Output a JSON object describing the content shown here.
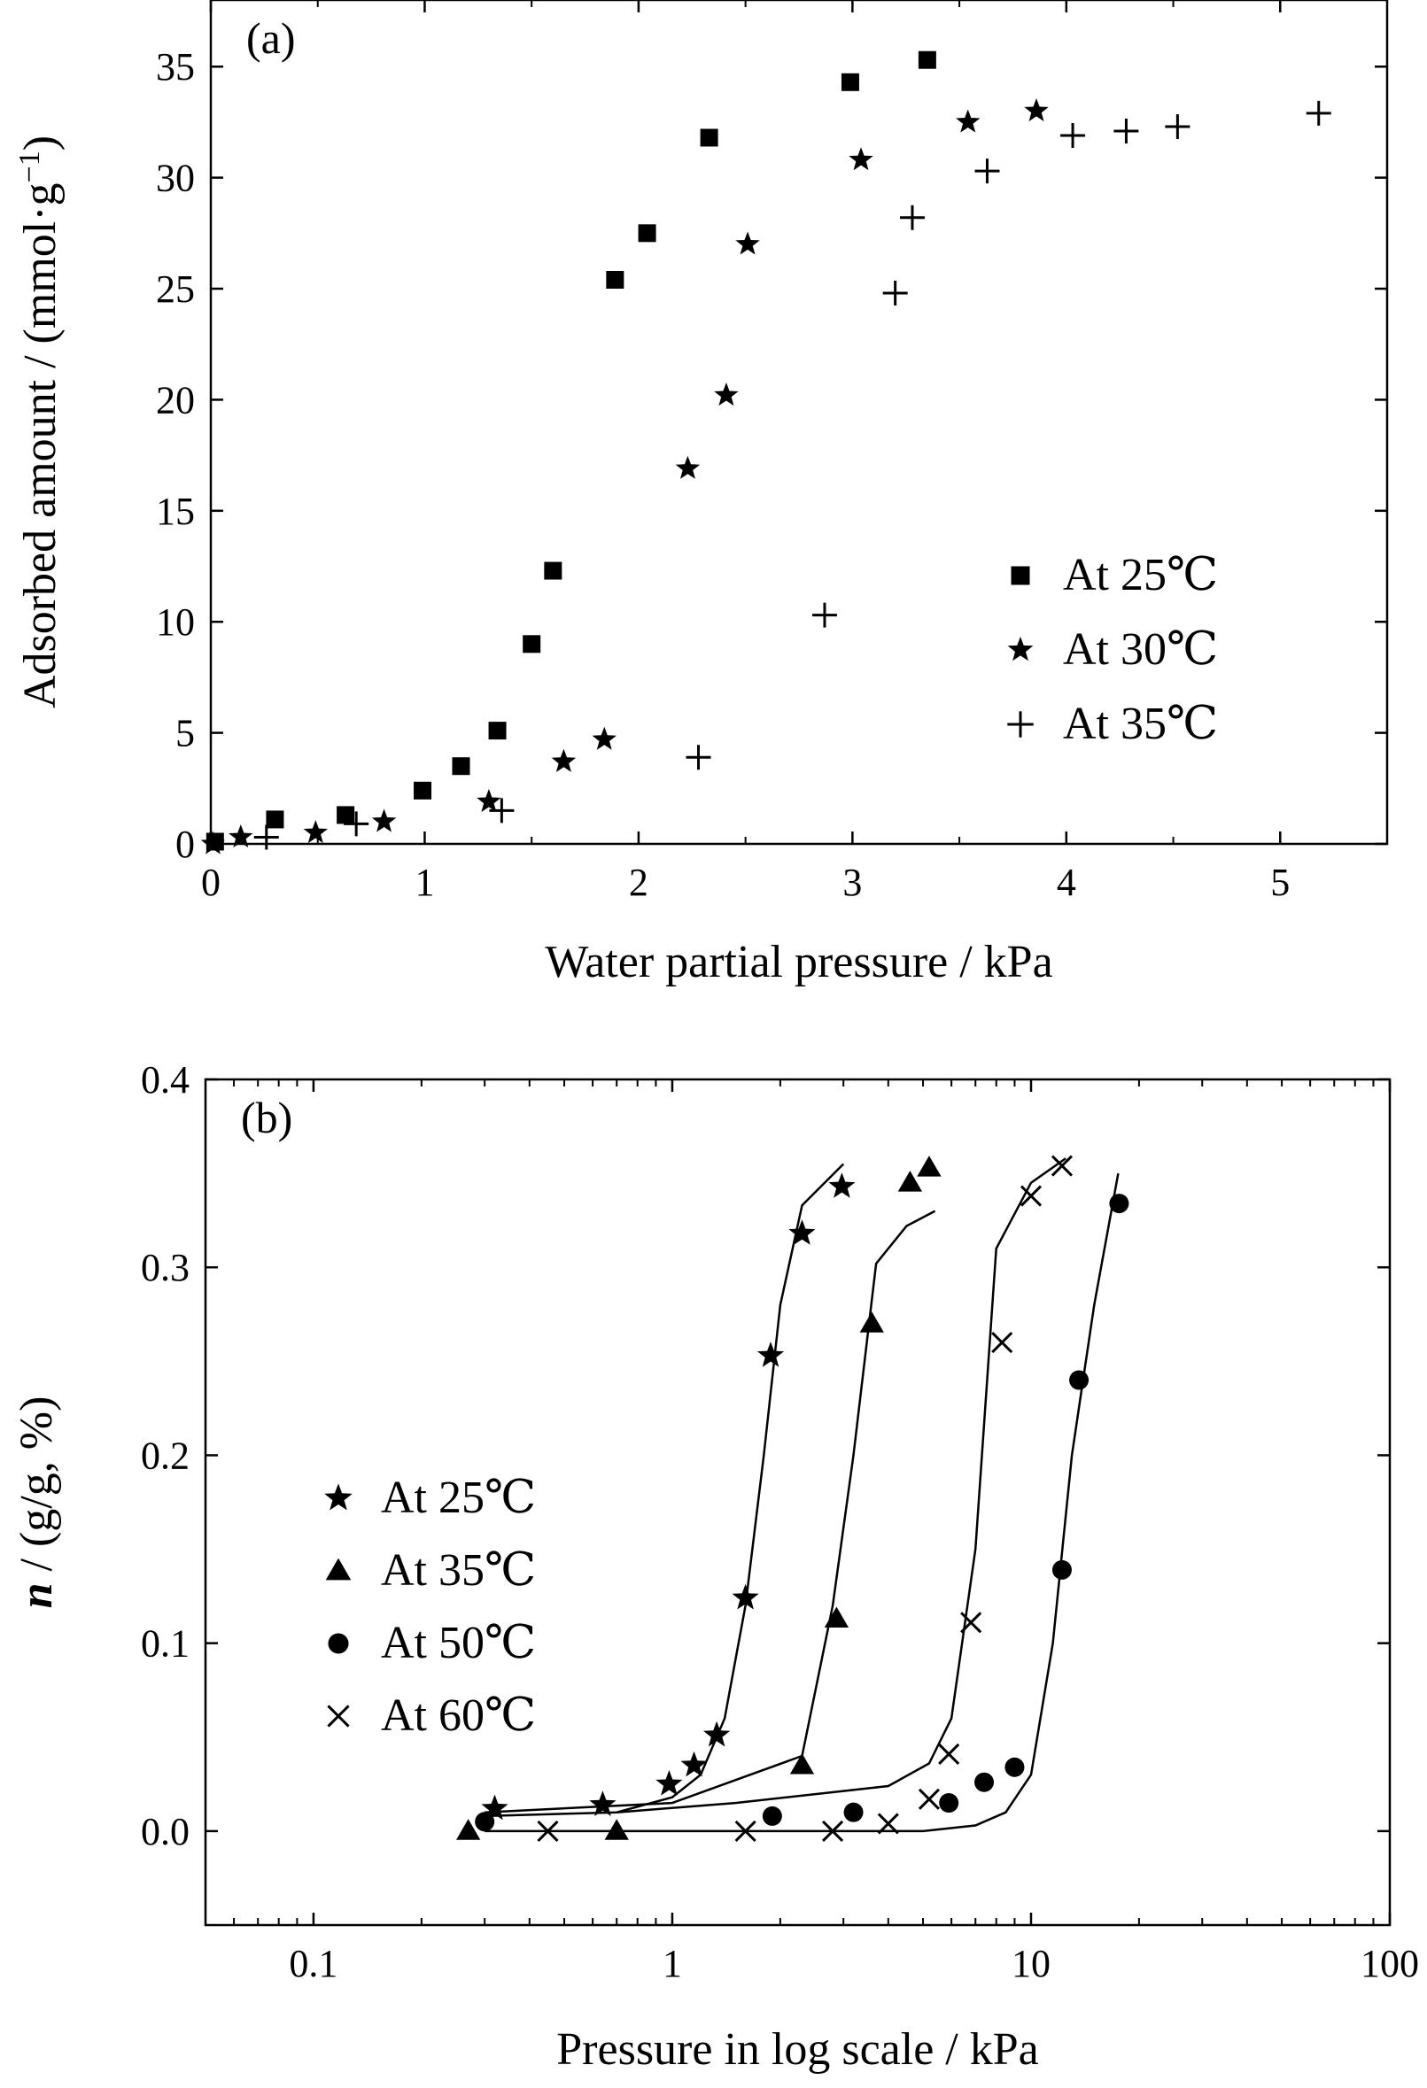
{
  "chart_data": [
    {
      "panel_label": "(a)",
      "type": "scatter",
      "xlabel": "Water partial pressure / kPa",
      "ylabel": "Adsorbed amount / (mmol·g⁻¹)",
      "ylabel_main": "Adsorbed amount / (mmol·g",
      "ylabel_sup": "−1",
      "ylabel_end": ")",
      "xlim": [
        0,
        5.5
      ],
      "ylim": [
        0,
        38
      ],
      "xticks": [
        0,
        1,
        2,
        3,
        4,
        5
      ],
      "yticks": [
        0,
        5,
        10,
        15,
        20,
        25,
        30,
        35
      ],
      "legend_position": "right",
      "series": [
        {
          "name": "At 25℃",
          "marker": "square",
          "points": [
            [
              0.02,
              0.1
            ],
            [
              0.3,
              1.1
            ],
            [
              0.63,
              1.3
            ],
            [
              0.99,
              2.4
            ],
            [
              1.17,
              3.5
            ],
            [
              1.34,
              5.1
            ],
            [
              1.5,
              9.0
            ],
            [
              1.6,
              12.3
            ],
            [
              1.89,
              25.4
            ],
            [
              2.04,
              27.5
            ],
            [
              2.33,
              31.8
            ],
            [
              2.99,
              34.3
            ],
            [
              3.35,
              35.3
            ]
          ]
        },
        {
          "name": "At 30℃",
          "marker": "star",
          "points": [
            [
              0.01,
              0.0
            ],
            [
              0.14,
              0.3
            ],
            [
              0.49,
              0.5
            ],
            [
              0.81,
              1.0
            ],
            [
              1.3,
              1.9
            ],
            [
              1.65,
              3.7
            ],
            [
              1.84,
              4.7
            ],
            [
              2.23,
              16.9
            ],
            [
              2.41,
              20.2
            ],
            [
              2.51,
              27.0
            ],
            [
              3.04,
              30.8
            ],
            [
              3.54,
              32.5
            ],
            [
              3.86,
              33.0
            ]
          ]
        },
        {
          "name": "At 35℃",
          "marker": "plus",
          "points": [
            [
              0.26,
              0.3
            ],
            [
              0.68,
              0.9
            ],
            [
              1.36,
              1.5
            ],
            [
              2.28,
              3.9
            ],
            [
              2.87,
              10.3
            ],
            [
              3.2,
              24.8
            ],
            [
              3.28,
              28.2
            ],
            [
              3.63,
              30.3
            ],
            [
              4.03,
              31.9
            ],
            [
              4.28,
              32.1
            ],
            [
              4.52,
              32.3
            ],
            [
              5.18,
              32.9
            ]
          ]
        }
      ]
    },
    {
      "panel_label": "(b)",
      "type": "scatter",
      "xlabel": "Pressure in log scale / kPa",
      "ylabel": "n / (g/g, %)",
      "ylabel_italic": "n",
      "ylabel_rest": " / (g/g, %)",
      "xscale": "log",
      "xlim": [
        0.05,
        100
      ],
      "ylim": [
        -0.05,
        0.4
      ],
      "xticks": [
        0.1,
        1,
        10,
        100
      ],
      "xtick_labels": [
        "0.1",
        "1",
        "10",
        "100"
      ],
      "yticks": [
        0.0,
        0.1,
        0.2,
        0.3,
        0.4
      ],
      "ytick_labels": [
        "0.0",
        "0.1",
        "0.2",
        "0.3",
        "0.4"
      ],
      "legend_position": "left",
      "series": [
        {
          "name": "At 25℃",
          "marker": "star",
          "points": [
            [
              0.32,
              0.012
            ],
            [
              0.64,
              0.014
            ],
            [
              0.98,
              0.025
            ],
            [
              1.15,
              0.035
            ],
            [
              1.33,
              0.051
            ],
            [
              1.6,
              0.124
            ],
            [
              1.88,
              0.253
            ],
            [
              2.3,
              0.318
            ],
            [
              2.97,
              0.343
            ]
          ],
          "fit": [
            [
              0.3,
              0.008
            ],
            [
              0.7,
              0.01
            ],
            [
              1.0,
              0.018
            ],
            [
              1.2,
              0.03
            ],
            [
              1.4,
              0.06
            ],
            [
              1.6,
              0.12
            ],
            [
              1.8,
              0.2
            ],
            [
              2.0,
              0.28
            ],
            [
              2.3,
              0.333
            ],
            [
              3.0,
              0.355
            ]
          ]
        },
        {
          "name": "At 35℃",
          "marker": "triangle",
          "points": [
            [
              0.27,
              0.0
            ],
            [
              0.7,
              0.0
            ],
            [
              2.3,
              0.035
            ],
            [
              2.87,
              0.113
            ],
            [
              3.6,
              0.27
            ],
            [
              4.6,
              0.345
            ],
            [
              5.2,
              0.353
            ]
          ],
          "fit": [
            [
              0.3,
              0.01
            ],
            [
              1.0,
              0.015
            ],
            [
              2.3,
              0.04
            ],
            [
              2.8,
              0.12
            ],
            [
              3.2,
              0.2
            ],
            [
              3.7,
              0.302
            ],
            [
              4.5,
              0.322
            ],
            [
              5.4,
              0.33
            ]
          ]
        },
        {
          "name": "At 50℃",
          "marker": "circle",
          "points": [
            [
              0.3,
              0.005
            ],
            [
              1.9,
              0.008
            ],
            [
              3.2,
              0.01
            ],
            [
              5.9,
              0.015
            ],
            [
              7.4,
              0.026
            ],
            [
              9.0,
              0.034
            ],
            [
              12.2,
              0.139
            ],
            [
              13.6,
              0.24
            ],
            [
              17.6,
              0.334
            ]
          ],
          "fit": [
            [
              0.3,
              0.0
            ],
            [
              5.0,
              0.0
            ],
            [
              7.0,
              0.003
            ],
            [
              8.5,
              0.01
            ],
            [
              10.0,
              0.03
            ],
            [
              11.5,
              0.1
            ],
            [
              13.0,
              0.2
            ],
            [
              15.0,
              0.28
            ],
            [
              17.5,
              0.35
            ]
          ]
        },
        {
          "name": "At 60℃",
          "marker": "x",
          "points": [
            [
              0.45,
              0.0
            ],
            [
              1.6,
              0.0
            ],
            [
              2.8,
              0.0
            ],
            [
              4.0,
              0.004
            ],
            [
              5.2,
              0.017
            ],
            [
              5.9,
              0.041
            ],
            [
              6.8,
              0.111
            ],
            [
              8.3,
              0.26
            ],
            [
              10.0,
              0.338
            ],
            [
              12.2,
              0.354
            ]
          ],
          "fit": [
            [
              0.7,
              0.01
            ],
            [
              1.5,
              0.015
            ],
            [
              4.0,
              0.024
            ],
            [
              5.2,
              0.036
            ],
            [
              6.0,
              0.06
            ],
            [
              7.0,
              0.15
            ],
            [
              8.0,
              0.31
            ],
            [
              10.0,
              0.345
            ],
            [
              12.5,
              0.358
            ]
          ]
        }
      ]
    }
  ]
}
